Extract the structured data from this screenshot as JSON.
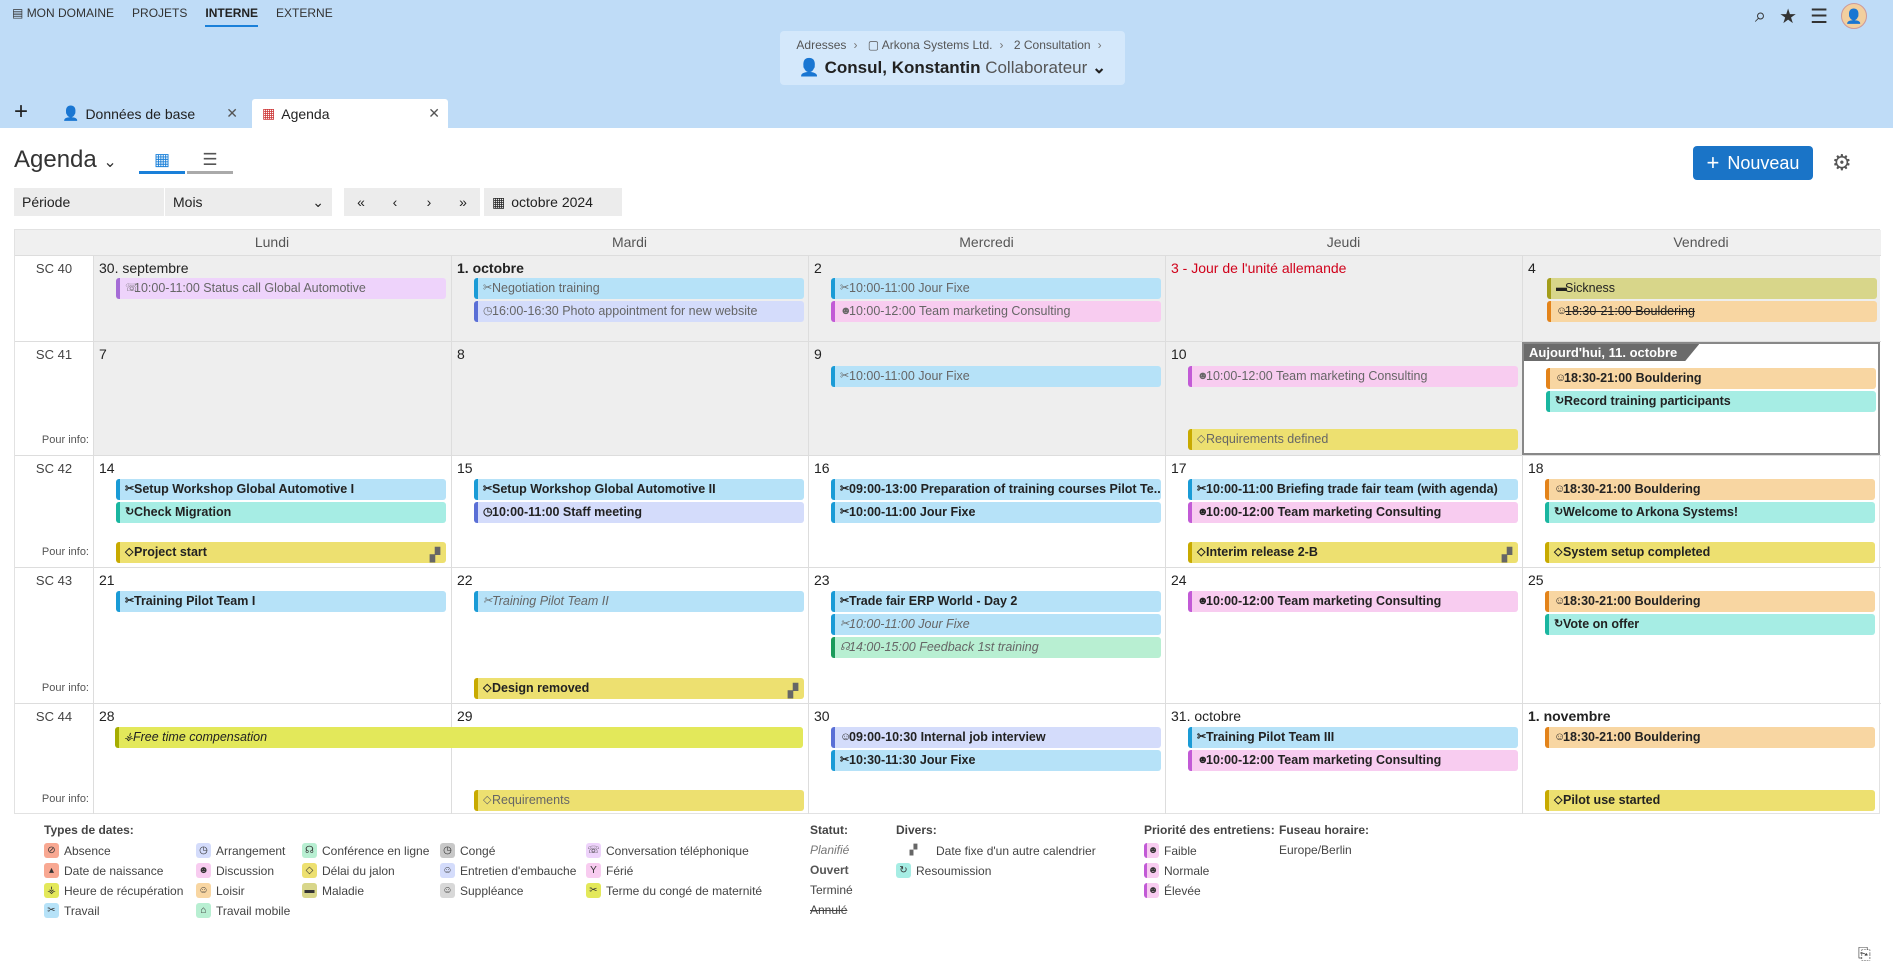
{
  "nav": {
    "items": [
      "MON DOMAINE",
      "PROJETS",
      "INTERNE",
      "EXTERNE"
    ],
    "active": "INTERNE"
  },
  "top_icons": [
    "search-icon",
    "star-icon",
    "menu-icon",
    "avatar"
  ],
  "context": {
    "breadcrumb": [
      "Adresses",
      "Arkona Systems Ltd.",
      "2 Consultation"
    ],
    "person_name": "Consul, Konstantin",
    "person_role": "Collaborateur"
  },
  "tabs": {
    "base": "Données de base",
    "agenda": "Agenda"
  },
  "toolbar": {
    "title": "Agenda",
    "new_label": "Nouveau",
    "period_label": "Période",
    "period_value": "Mois",
    "date_value": "octobre 2024"
  },
  "calendar": {
    "days": [
      "Lundi",
      "Mardi",
      "Mercredi",
      "Jeudi",
      "Vendredi"
    ],
    "pour_info": "Pour info:",
    "today_label": "Aujourd'hui, 11. octobre",
    "weeks": [
      {
        "label": "SC 40",
        "dates": [
          "30. septembre",
          "1. octobre",
          "2",
          "3 - Jour de l'unité allemande",
          "4"
        ]
      },
      {
        "label": "SC 41",
        "dates": [
          "7",
          "8",
          "9",
          "10",
          ""
        ]
      },
      {
        "label": "SC 42",
        "dates": [
          "14",
          "15",
          "16",
          "17",
          "18"
        ]
      },
      {
        "label": "SC 43",
        "dates": [
          "21",
          "22",
          "23",
          "24",
          "25"
        ]
      },
      {
        "label": "SC 44",
        "dates": [
          "28",
          "29",
          "30",
          "31. octobre",
          "1. novembre"
        ]
      }
    ],
    "events": {
      "w40": [
        "10:00-11:00 Status call Global Automotive",
        "Negotiation training",
        "16:00-16:30 Photo appointment for new website",
        "10:00-11:00 Jour Fixe",
        "10:00-12:00 Team marketing Consulting",
        "Sickness",
        "18:30-21:00 Bouldering"
      ],
      "w41": [
        "10:00-11:00 Jour Fixe",
        "10:00-12:00 Team marketing Consulting",
        "Requirements defined",
        "18:30-21:00 Bouldering",
        "Record training participants"
      ],
      "w42": [
        "Setup Workshop Global Automotive I",
        "Check Migration",
        "Project start",
        "Setup Workshop Global Automotive II",
        "10:00-11:00 Staff meeting",
        "09:00-13:00 Preparation of training courses Pilot Te...",
        "10:00-11:00 Jour Fixe",
        "10:00-11:00 Briefing trade fair team (with agenda)",
        "10:00-12:00 Team marketing Consulting",
        "Interim release 2-B",
        "18:30-21:00 Bouldering",
        "Welcome to Arkona Systems!",
        "System setup completed"
      ],
      "w43": [
        "Training Pilot Team I",
        "Training Pilot Team II",
        "Design removed",
        "Trade fair ERP World - Day 2",
        "10:00-11:00 Jour Fixe",
        "14:00-15:00 Feedback 1st training",
        "10:00-12:00 Team marketing Consulting",
        "18:30-21:00 Bouldering",
        "Vote on offer"
      ],
      "w44": [
        "Free time compensation",
        "Requirements",
        "09:00-10:30 Internal job interview",
        "10:30-11:30 Jour Fixe",
        "Training Pilot Team III",
        "10:00-12:00 Team marketing Consulting",
        "18:30-21:00 Bouldering",
        "Pilot use started"
      ]
    }
  },
  "legend": {
    "types_title": "Types de dates:",
    "types": [
      "Absence",
      "Date de naissance",
      "Heure de récupération",
      "Travail",
      "Arrangement",
      "Discussion",
      "Loisir",
      "Travail mobile",
      "Conférence en ligne",
      "Délai du jalon",
      "Maladie",
      "Congé",
      "Entretien d'embauche",
      "Suppléance",
      "Conversation téléphonique",
      "Férié",
      "Terme du congé de maternité"
    ],
    "status_title": "Statut:",
    "status": [
      "Planifié",
      "Ouvert",
      "Terminé",
      "Annulé"
    ],
    "divers_title": "Divers:",
    "divers": [
      "Date fixe d'un autre calendrier",
      "Resoumission"
    ],
    "priority_title": "Priorité des entretiens:",
    "priority": [
      "Faible",
      "Normale",
      "Élevée"
    ],
    "tz_title": "Fuseau horaire:",
    "tz_value": "Europe/Berlin"
  }
}
